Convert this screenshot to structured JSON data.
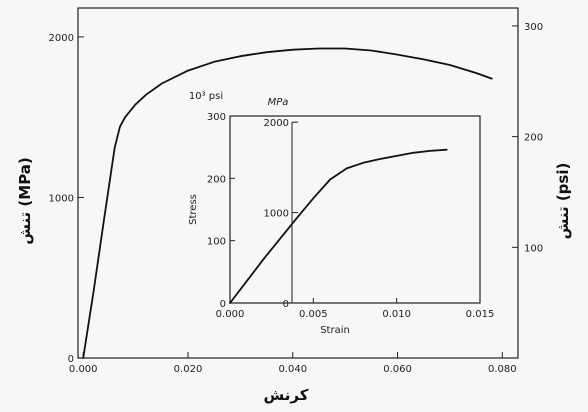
{
  "chart_data": [
    {
      "type": "line",
      "role": "main",
      "x_tick_labels": [
        "0.000",
        "0.020",
        "0.040",
        "0.060",
        "0.080"
      ],
      "x_ticks": [
        0.0,
        0.02,
        0.04,
        0.06,
        0.08
      ],
      "y_left_tick_labels": [
        "0",
        "1000",
        "2000"
      ],
      "y_left_ticks": [
        0,
        1000,
        2000
      ],
      "y_right_tick_labels": [
        "100",
        "200",
        "300"
      ],
      "y_right_ticks": [
        100,
        200,
        300
      ],
      "xlabel": "کرنش",
      "ylabel_left": "تنش (MPa)",
      "ylabel_right": "تنش (psi)",
      "xlim": [
        -0.001,
        0.083
      ],
      "ylim": [
        0,
        2180
      ],
      "y_right_lim": [
        0,
        316.2
      ],
      "series": [
        {
          "x": [
            0.0,
            0.002,
            0.004,
            0.006,
            0.007,
            0.008,
            0.01,
            0.012,
            0.015,
            0.02,
            0.025,
            0.03,
            0.035,
            0.04,
            0.045,
            0.05,
            0.055,
            0.06,
            0.065,
            0.07,
            0.075,
            0.078
          ],
          "y": [
            0,
            420,
            870,
            1310,
            1440,
            1500,
            1580,
            1640,
            1710,
            1790,
            1845,
            1880,
            1905,
            1920,
            1928,
            1928,
            1915,
            1890,
            1860,
            1825,
            1775,
            1740
          ]
        }
      ]
    },
    {
      "type": "line",
      "role": "inset",
      "x_tick_labels": [
        "0.000",
        "0.005",
        "0.010",
        "0.015"
      ],
      "x_ticks": [
        0.0,
        0.005,
        0.01,
        0.015
      ],
      "y_left_tick_labels": [
        "0",
        "100",
        "200",
        "300"
      ],
      "y_left_ticks": [
        0,
        100,
        200,
        300
      ],
      "y_left_unit": "10³ psi",
      "y_right_tick_labels": [
        "0",
        "1000",
        "2000"
      ],
      "y_right_ticks": [
        0,
        1000,
        2000
      ],
      "y_right_unit": "MPa",
      "xlabel": "Strain",
      "ylabel": "Stress",
      "xlim": [
        0,
        0.015
      ],
      "ylim": [
        0,
        300
      ],
      "y_right_lim": [
        0,
        2068
      ],
      "series": [
        {
          "x": [
            0.0,
            0.001,
            0.002,
            0.003,
            0.004,
            0.005,
            0.006,
            0.007,
            0.008,
            0.009,
            0.01,
            0.011,
            0.012,
            0.013
          ],
          "y": [
            0,
            35,
            70,
            103,
            136,
            168,
            198,
            216,
            225,
            231,
            236,
            241,
            244,
            246
          ]
        }
      ]
    }
  ]
}
